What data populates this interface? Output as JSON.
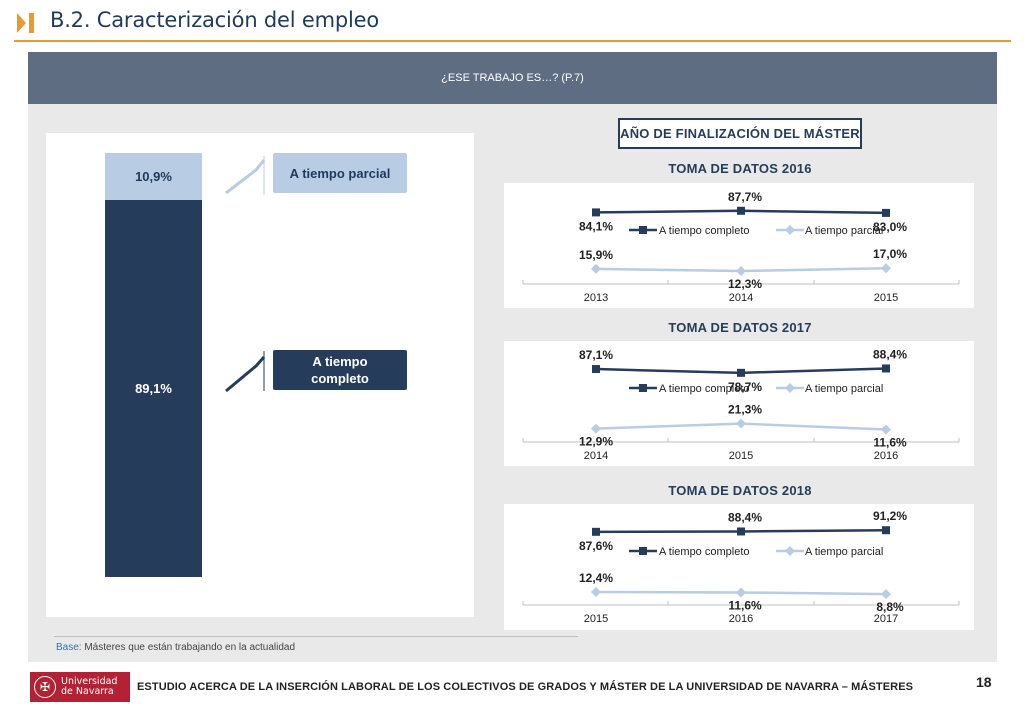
{
  "header": {
    "title": "B.2. Caracterización del empleo",
    "accent_color": "#e39b33",
    "title_color": "#1f3a5c"
  },
  "panel": {
    "heading": "¿ESE TRABAJO ES…? (P.7)"
  },
  "stacked_bar": {
    "segments": [
      {
        "label": "A tiempo parcial",
        "value_label": "10,9%",
        "value": 10.9,
        "color": "#b8cce4"
      },
      {
        "label": "A tiempo completo",
        "value_label": "89,1%",
        "value": 89.1,
        "color": "#253d5b"
      }
    ],
    "legend": {
      "parcial": "A tiempo parcial",
      "completo_line1": "A tiempo",
      "completo_line2": "completo"
    }
  },
  "year_box": "AÑO DE FINALIZACIÓN DEL MÁSTER",
  "chart_data": [
    {
      "type": "bar",
      "stacked": true,
      "categories": [
        ""
      ],
      "series": [
        {
          "name": "A tiempo parcial",
          "values": [
            10.9
          ]
        },
        {
          "name": "A tiempo completo",
          "values": [
            89.1
          ]
        }
      ]
    },
    {
      "type": "line",
      "title": "TOMA DE DATOS 2016",
      "categories": [
        "2013",
        "2014",
        "2015"
      ],
      "series": [
        {
          "name": "A tiempo completo",
          "values": [
            84.1,
            87.7,
            83.0
          ],
          "labels": [
            "84,1%",
            "87,7%",
            "83,0%"
          ],
          "color": "#253d5b"
        },
        {
          "name": "A tiempo parcial",
          "values": [
            15.9,
            12.3,
            17.0
          ],
          "labels": [
            "15,9%",
            "12,3%",
            "17,0%"
          ],
          "color": "#b8cce4"
        }
      ]
    },
    {
      "type": "line",
      "title": "TOMA DE DATOS 2017",
      "categories": [
        "2014",
        "2015",
        "2016"
      ],
      "series": [
        {
          "name": "A tiempo completo",
          "values": [
            87.1,
            78.7,
            88.4
          ],
          "labels": [
            "87,1%",
            "78,7%",
            "88,4%"
          ],
          "color": "#253d5b"
        },
        {
          "name": "A tiempo parcial",
          "values": [
            12.9,
            21.3,
            11.6
          ],
          "labels": [
            "12,9%",
            "21,3%",
            "11,6%"
          ],
          "color": "#b8cce4"
        }
      ]
    },
    {
      "type": "line",
      "title": "TOMA DE DATOS 2018",
      "categories": [
        "2015",
        "2016",
        "2017"
      ],
      "series": [
        {
          "name": "A tiempo completo",
          "values": [
            87.6,
            88.4,
            91.2
          ],
          "labels": [
            "87,6%",
            "88,4%",
            "91,2%"
          ],
          "color": "#253d5b"
        },
        {
          "name": "A tiempo parcial",
          "values": [
            12.4,
            11.6,
            8.8
          ],
          "labels": [
            "12,4%",
            "11,6%",
            "8,8%"
          ],
          "color": "#b8cce4"
        }
      ]
    }
  ],
  "base_note": {
    "label": "Base:",
    "text": " Másteres que están trabajando en la actualidad"
  },
  "footer": {
    "university_line1": "Universidad",
    "university_line2": "de Navarra",
    "study_title": "ESTUDIO ACERCA DE LA INSERCIÓN LABORAL DE LOS COLECTIVOS DE GRADOS Y MÁSTER DE LA UNIVERSIDAD DE NAVARRA – MÁSTERES",
    "page_number": "18",
    "brand_color": "#b22234"
  }
}
